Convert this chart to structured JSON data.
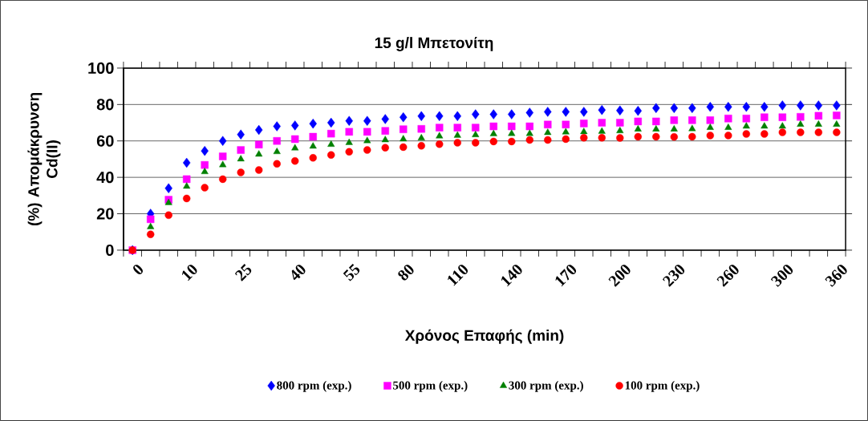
{
  "chart_data": {
    "type": "scatter",
    "title": "15 g/l Μπετονίτη",
    "xlabel": "Χρόνος Επαφής (min)",
    "ylabel": "(%) Απομάκρυνση Cd(II)",
    "categories": [
      "0",
      null,
      null,
      "10",
      null,
      null,
      "25",
      null,
      null,
      "40",
      null,
      null,
      "55",
      null,
      null,
      "80",
      null,
      null,
      "110",
      null,
      null,
      "140",
      null,
      null,
      "170",
      null,
      null,
      "200",
      null,
      null,
      "230",
      null,
      null,
      "260",
      null,
      null,
      "300",
      null,
      null,
      "360"
    ],
    "ylim": [
      0,
      100
    ],
    "yticks": [
      0,
      20,
      40,
      60,
      80,
      100
    ],
    "grid": "y",
    "legend": "bottom",
    "series": [
      {
        "name": "800 rpm (exp.)",
        "color": "#0000ff",
        "marker": "diamond",
        "values": [
          0,
          20,
          34,
          48,
          54.5,
          60,
          63.5,
          66,
          68,
          68.5,
          69.5,
          70,
          71,
          71,
          72,
          73,
          73.6,
          73.6,
          73.6,
          74.6,
          74.6,
          74.6,
          75.5,
          76,
          76,
          76,
          77,
          76.7,
          76.5,
          78,
          78,
          78,
          78.7,
          78.7,
          78.7,
          78.7,
          79.5,
          79.5,
          79.5,
          79.5
        ]
      },
      {
        "name": "500 rpm (exp.)",
        "color": "#ff00ff",
        "marker": "square",
        "values": [
          0,
          17,
          27.7,
          39,
          46.8,
          51.5,
          55,
          58,
          60,
          61,
          62.3,
          64,
          65,
          65,
          65.5,
          66.4,
          66.6,
          67.3,
          67.3,
          67.3,
          68,
          68,
          68,
          69,
          69,
          69.6,
          70,
          70,
          70.7,
          70.7,
          71.4,
          71.4,
          71.4,
          72.3,
          72.3,
          73,
          73,
          73.2,
          73.8,
          74
        ]
      },
      {
        "name": "300 rpm (exp.)",
        "color": "#008000",
        "marker": "triangle",
        "values": [
          0,
          12.8,
          26,
          35,
          43,
          46.8,
          50,
          52.6,
          54,
          56,
          57,
          58,
          59,
          60,
          60.5,
          61,
          61.5,
          62.6,
          63,
          63.3,
          63.8,
          64,
          64,
          64.5,
          64.8,
          65,
          65.2,
          65.5,
          66.4,
          66.4,
          66.4,
          66.6,
          67.3,
          67.3,
          68,
          68,
          68,
          69,
          69,
          69
        ]
      },
      {
        "name": "100 rpm (exp.)",
        "color": "#ff0000",
        "marker": "circle",
        "values": [
          0,
          8.7,
          19.2,
          28.4,
          34.3,
          39,
          42.7,
          44,
          47.4,
          49,
          50.7,
          52.3,
          54,
          55,
          56.3,
          56.6,
          57.3,
          58.2,
          59,
          59,
          59.7,
          59.7,
          60.5,
          60.5,
          61,
          61.7,
          61.7,
          61.6,
          62.3,
          62.3,
          62.2,
          62.3,
          63,
          63,
          63.8,
          63.8,
          64.7,
          64.7,
          64.7,
          64.7
        ]
      }
    ]
  }
}
